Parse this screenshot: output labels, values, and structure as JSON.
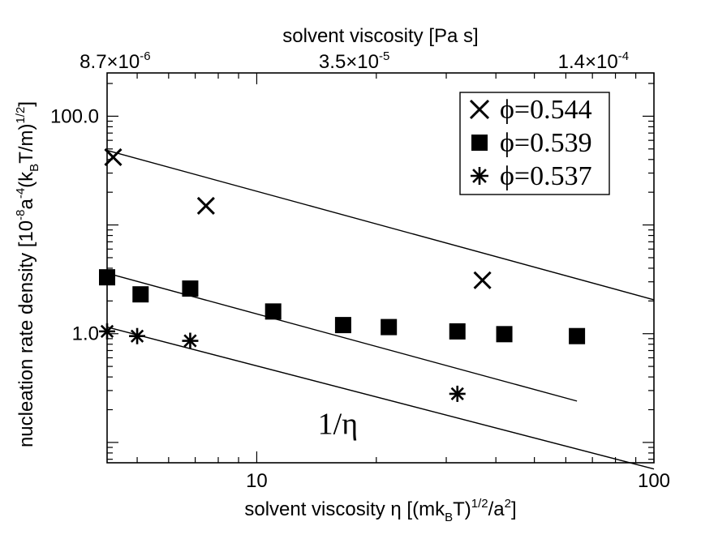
{
  "chart_data": {
    "type": "scatter",
    "x_scale": "log",
    "y_scale": "log",
    "xlim": [
      4.2,
      100
    ],
    "ylim": [
      0.065,
      250
    ],
    "x_ticks": [
      10,
      100
    ],
    "x_tick_labels": [
      "10",
      "100"
    ],
    "y_ticks": [
      1.0,
      100.0
    ],
    "y_tick_labels": [
      "1.0",
      "100.0"
    ],
    "xlabel_parts": [
      "solvent viscosity η [(mk",
      "B",
      "T)",
      "1/2",
      "/a",
      "2",
      "]"
    ],
    "ylabel_parts": [
      "nucleation rate density [10",
      "-8",
      "a",
      "-4",
      "(k",
      "B",
      "T/m)",
      "1/2",
      "]"
    ],
    "top_axis": {
      "label": "solvent viscosity [Pa s]",
      "tick_labels": [
        {
          "x": 4.4,
          "mantissa": "8.7×10",
          "exponent": "-6"
        },
        {
          "x": 17.6,
          "mantissa": "3.5×10",
          "exponent": "-5"
        },
        {
          "x": 70.4,
          "mantissa": "1.4×10",
          "exponent": "-4"
        }
      ]
    },
    "legend_position": "top-right",
    "series": [
      {
        "name": "ϕ=0.544",
        "marker": "x",
        "x": [
          4.35,
          7.45,
          37.0
        ],
        "y": [
          42.0,
          15.0,
          3.1
        ],
        "fit": {
          "x": [
            4.2,
            100
          ],
          "y": [
            48.5,
            2.05
          ]
        }
      },
      {
        "name": "ϕ=0.539",
        "marker": "square",
        "x": [
          4.2,
          5.1,
          6.8,
          11.0,
          16.5,
          21.5,
          32.0,
          42.0,
          64.0
        ],
        "y": [
          3.3,
          2.3,
          2.6,
          1.6,
          1.2,
          1.15,
          1.05,
          0.99,
          0.95
        ],
        "fit": {
          "x": [
            4.2,
            64.0
          ],
          "y": [
            3.6,
            0.24
          ]
        }
      },
      {
        "name": "ϕ=0.537",
        "marker": "asterisk",
        "x": [
          4.2,
          5.0,
          6.8,
          32.0
        ],
        "y": [
          1.05,
          0.95,
          0.86,
          0.28
        ],
        "fit": {
          "x": [
            4.2,
            100
          ],
          "y": [
            1.15,
            0.057
          ]
        }
      }
    ],
    "annotations": [
      {
        "text": "1/η",
        "x": 16.0,
        "y": 0.12
      }
    ]
  }
}
